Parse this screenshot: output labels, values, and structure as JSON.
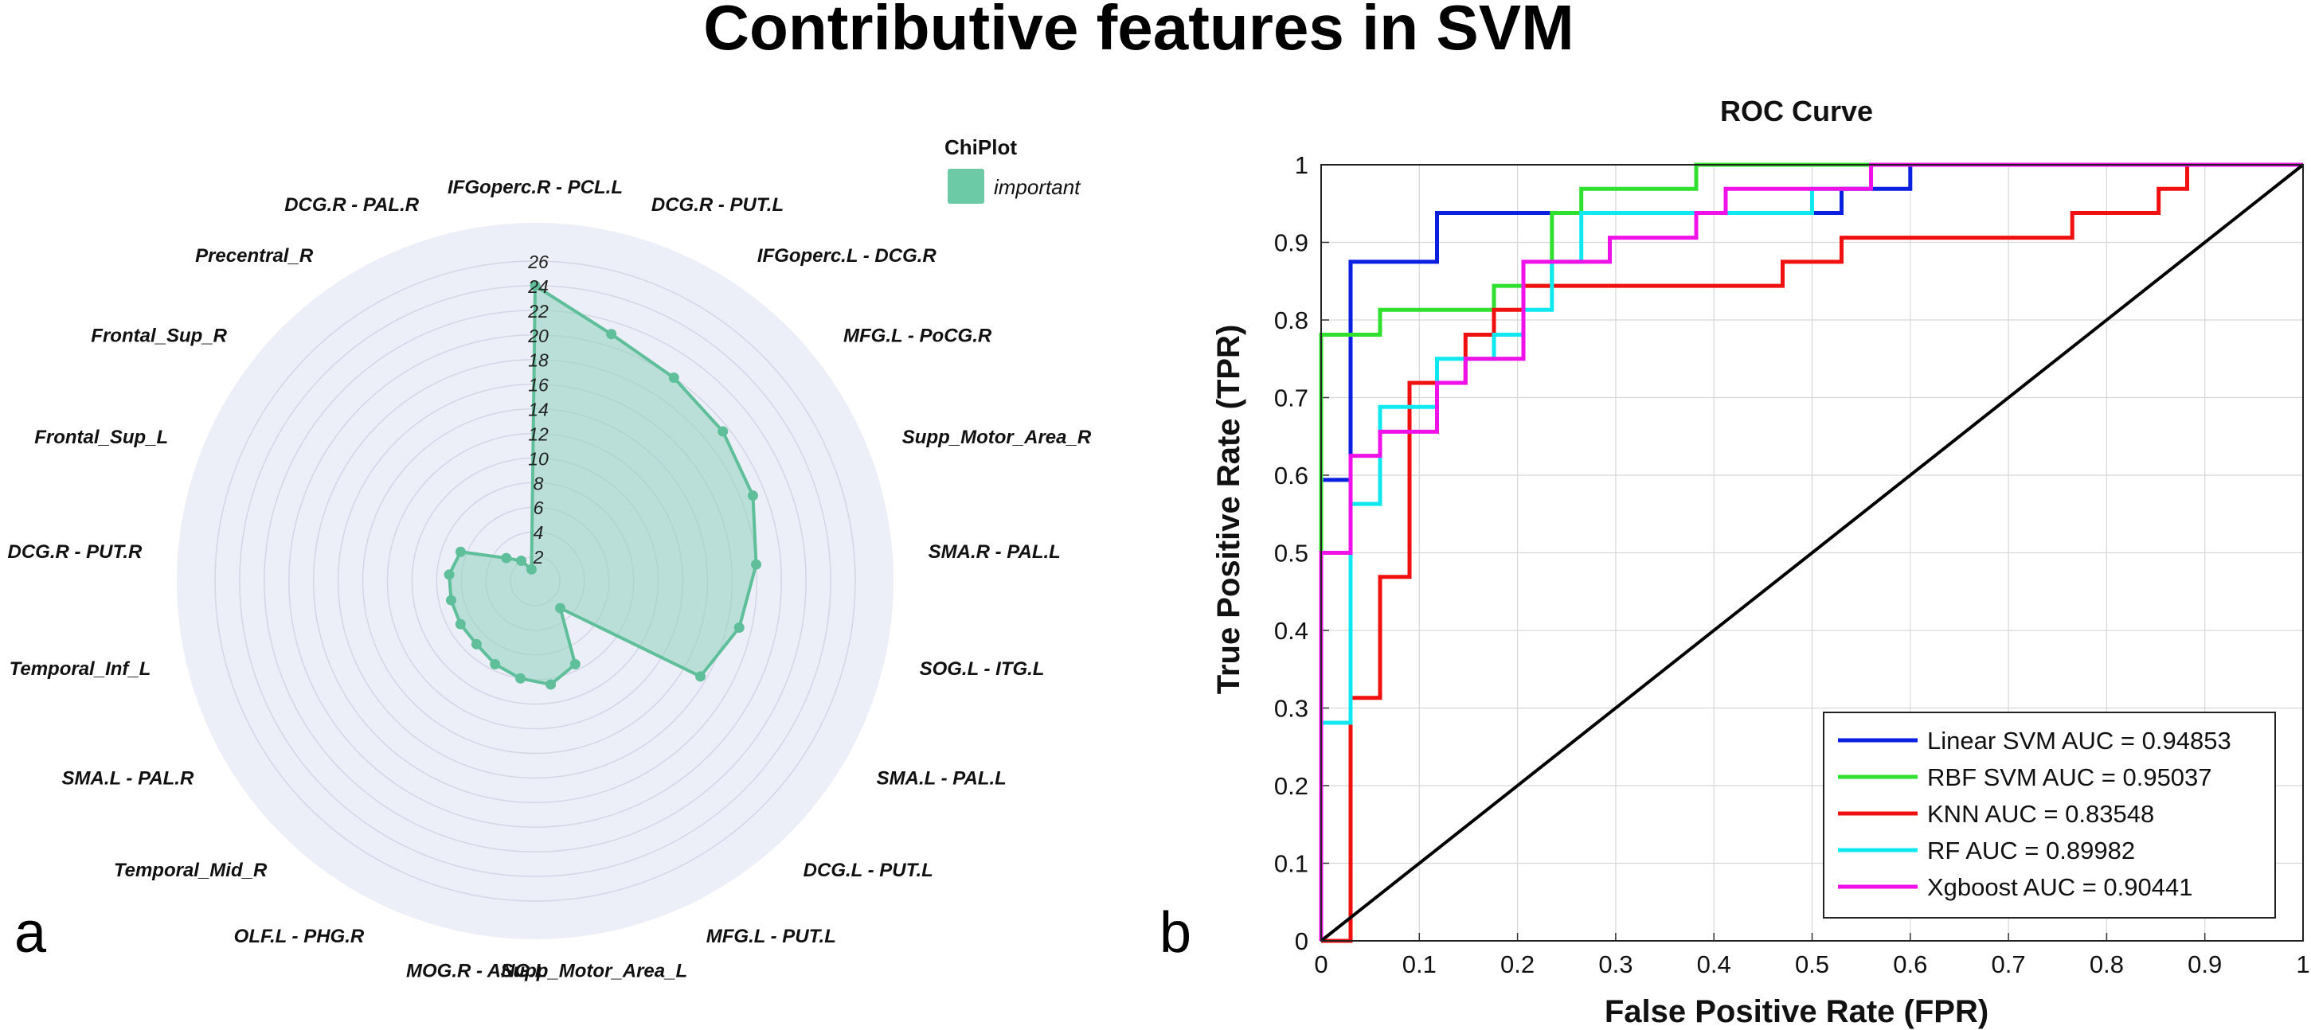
{
  "title": "Contributive features in SVM",
  "panels": {
    "a": "a",
    "b": "b"
  },
  "chart_data": [
    {
      "type": "radar",
      "categories": [
        "IFGoperc.R - PCL.L",
        "DCG.R - PUT.L",
        "IFGoperc.L - DCG.R",
        "MFG.L - PoCG.R",
        "Supp_Motor_Area_R",
        "SMA.R - PAL.L",
        "SOG.L - ITG.L",
        "SMA.L - PAL.L",
        "DCG.L - PUT.L",
        "MFG.L - PUT.L",
        "Supp_Motor_Area_L",
        "MOG.R - ANG.L",
        "OLF.L - PHG.R",
        "Temporal_Mid_R",
        "SMA.L - PAL.R",
        "Temporal_Inf_L",
        "DCG.R - PUT.R",
        "Frontal_Sup_L",
        "Frontal_Sup_R",
        "Precentral_R",
        "DCG.R - PAL.R"
      ],
      "series": [
        {
          "name": "important",
          "values": [
            24,
            21,
            20,
            19.5,
            19,
            18,
            17,
            15.5,
            3,
            7.5,
            8.5,
            8,
            7.5,
            7,
            7,
            7,
            7,
            6.5,
            3,
            2,
            1
          ]
        }
      ],
      "radial_ticks": [
        "2",
        "4",
        "6",
        "8",
        "10",
        "12",
        "14",
        "16",
        "18",
        "20",
        "22",
        "24",
        "26"
      ],
      "rmax": 26,
      "legend": {
        "title": "ChiPlot",
        "label": "important",
        "position": "top-right"
      },
      "colors": {
        "fill": "#8fd3bd",
        "line": "#5fbf9a",
        "background": "#eceef8",
        "grid": "#d4d6e8"
      }
    },
    {
      "type": "line",
      "title": "ROC Curve",
      "xlabel": "False Positive Rate (FPR)",
      "ylabel": "True Positive Rate (TPR)",
      "xlim": [
        0,
        1
      ],
      "ylim": [
        0,
        1
      ],
      "xticks": [
        "0",
        "0.1",
        "0.2",
        "0.3",
        "0.4",
        "0.5",
        "0.6",
        "0.7",
        "0.8",
        "0.9",
        "1"
      ],
      "yticks": [
        "0",
        "0.1",
        "0.2",
        "0.3",
        "0.4",
        "0.5",
        "0.6",
        "0.7",
        "0.8",
        "0.9",
        "1"
      ],
      "grid": true,
      "legend_position": "bottom-right",
      "series": [
        {
          "name": "Linear SVM",
          "label": "Linear SVM AUC = 0.94853",
          "auc": 0.94853,
          "color": "#0a1fe0",
          "points": [
            [
              0,
              0
            ],
            [
              0,
              0.594
            ],
            [
              0.03,
              0.594
            ],
            [
              0.03,
              0.875
            ],
            [
              0.118,
              0.875
            ],
            [
              0.118,
              0.938
            ],
            [
              0.5,
              0.938
            ],
            [
              0.5,
              0.938
            ],
            [
              0.53,
              0.938
            ],
            [
              0.53,
              0.969
            ],
            [
              0.6,
              0.969
            ],
            [
              0.6,
              1
            ],
            [
              1,
              1
            ]
          ]
        },
        {
          "name": "RBF SVM",
          "label": "RBF SVM AUC = 0.95037",
          "auc": 0.95037,
          "color": "#2fe02f",
          "points": [
            [
              0,
              0
            ],
            [
              0,
              0.781
            ],
            [
              0.06,
              0.781
            ],
            [
              0.06,
              0.813
            ],
            [
              0.176,
              0.813
            ],
            [
              0.176,
              0.844
            ],
            [
              0.235,
              0.844
            ],
            [
              0.235,
              0.938
            ],
            [
              0.265,
              0.938
            ],
            [
              0.265,
              0.969
            ],
            [
              0.382,
              0.969
            ],
            [
              0.382,
              1
            ],
            [
              1,
              1
            ]
          ]
        },
        {
          "name": "KNN",
          "label": "KNN AUC = 0.83548",
          "auc": 0.83548,
          "color": "#f01010",
          "points": [
            [
              0,
              0
            ],
            [
              0.03,
              0
            ],
            [
              0.03,
              0.313
            ],
            [
              0.06,
              0.313
            ],
            [
              0.06,
              0.469
            ],
            [
              0.09,
              0.469
            ],
            [
              0.09,
              0.719
            ],
            [
              0.147,
              0.719
            ],
            [
              0.147,
              0.781
            ],
            [
              0.176,
              0.781
            ],
            [
              0.176,
              0.813
            ],
            [
              0.206,
              0.813
            ],
            [
              0.206,
              0.844
            ],
            [
              0.47,
              0.844
            ],
            [
              0.47,
              0.875
            ],
            [
              0.53,
              0.875
            ],
            [
              0.53,
              0.906
            ],
            [
              0.765,
              0.906
            ],
            [
              0.765,
              0.938
            ],
            [
              0.853,
              0.938
            ],
            [
              0.853,
              0.969
            ],
            [
              0.882,
              0.969
            ],
            [
              0.882,
              1
            ],
            [
              1,
              1
            ]
          ]
        },
        {
          "name": "RF",
          "label": "RF AUC = 0.89982",
          "auc": 0.89982,
          "color": "#10e8f0",
          "points": [
            [
              0,
              0
            ],
            [
              0,
              0.281
            ],
            [
              0.03,
              0.281
            ],
            [
              0.03,
              0.563
            ],
            [
              0.06,
              0.563
            ],
            [
              0.06,
              0.688
            ],
            [
              0.118,
              0.688
            ],
            [
              0.118,
              0.75
            ],
            [
              0.176,
              0.75
            ],
            [
              0.176,
              0.781
            ],
            [
              0.206,
              0.781
            ],
            [
              0.206,
              0.813
            ],
            [
              0.235,
              0.813
            ],
            [
              0.235,
              0.875
            ],
            [
              0.265,
              0.875
            ],
            [
              0.265,
              0.938
            ],
            [
              0.5,
              0.938
            ],
            [
              0.5,
              0.969
            ],
            [
              0.56,
              0.969
            ],
            [
              0.56,
              1
            ],
            [
              1,
              1
            ]
          ]
        },
        {
          "name": "Xgboost",
          "label": "Xgboost AUC = 0.90441",
          "auc": 0.90441,
          "color": "#f010e8",
          "points": [
            [
              0,
              0
            ],
            [
              0,
              0.5
            ],
            [
              0.03,
              0.5
            ],
            [
              0.03,
              0.625
            ],
            [
              0.06,
              0.625
            ],
            [
              0.06,
              0.656
            ],
            [
              0.118,
              0.656
            ],
            [
              0.118,
              0.719
            ],
            [
              0.147,
              0.719
            ],
            [
              0.147,
              0.75
            ],
            [
              0.206,
              0.75
            ],
            [
              0.206,
              0.875
            ],
            [
              0.294,
              0.875
            ],
            [
              0.294,
              0.906
            ],
            [
              0.382,
              0.906
            ],
            [
              0.382,
              0.938
            ],
            [
              0.412,
              0.938
            ],
            [
              0.412,
              0.969
            ],
            [
              0.56,
              0.969
            ],
            [
              0.56,
              1
            ],
            [
              1,
              1
            ]
          ]
        },
        {
          "name": "chance",
          "label": "",
          "color": "#000000",
          "points": [
            [
              0,
              0
            ],
            [
              1,
              1
            ]
          ]
        }
      ]
    }
  ]
}
